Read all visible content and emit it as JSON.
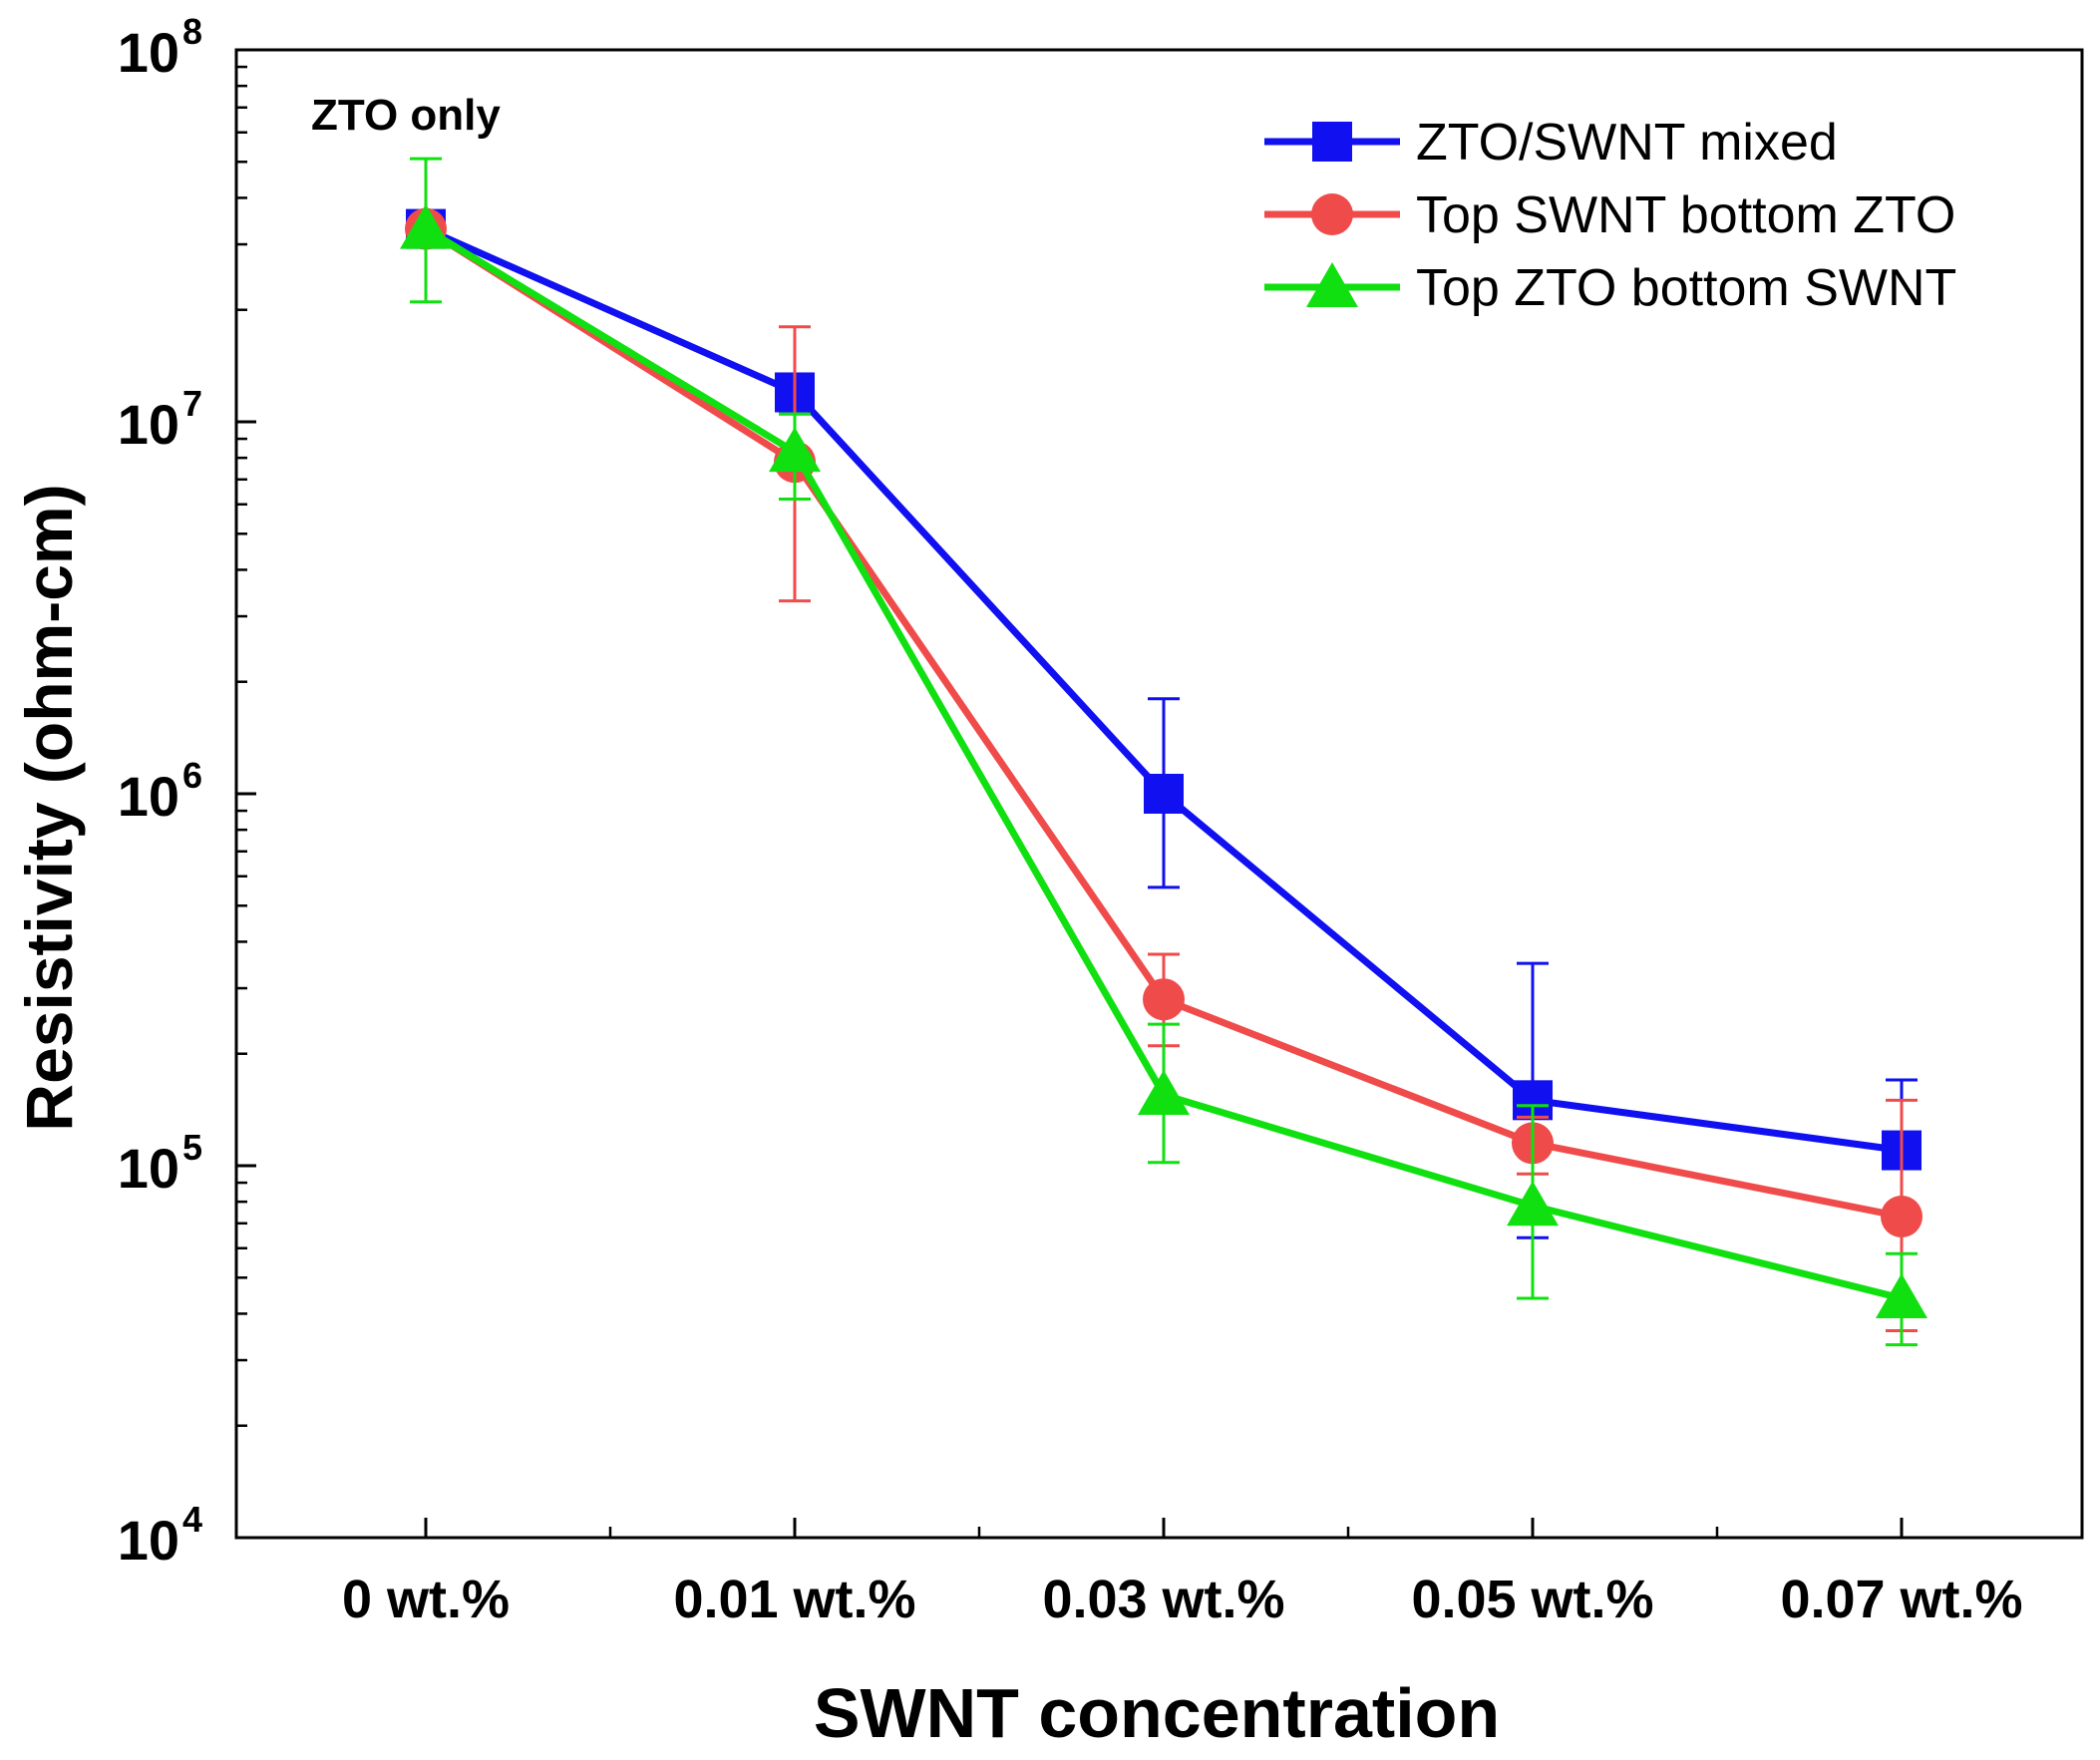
{
  "chart_data": {
    "type": "line",
    "title": "",
    "xlabel": "SWNT concentration",
    "ylabel": "Resistivity (ohm-cm)",
    "yscale": "log",
    "ylim": [
      10000,
      100000000
    ],
    "grid": false,
    "legend_position": "top-right",
    "categories": [
      "0 wt.%",
      "0.01 wt.%",
      "0.03 wt.%",
      "0.05 wt.%",
      "0.07 wt.%"
    ],
    "y_ticks": [
      {
        "value": 10000,
        "base": "10",
        "exp": "4"
      },
      {
        "value": 100000,
        "base": "10",
        "exp": "5"
      },
      {
        "value": 1000000,
        "base": "10",
        "exp": "6"
      },
      {
        "value": 10000000,
        "base": "10",
        "exp": "7"
      },
      {
        "value": 100000000,
        "base": "10",
        "exp": "8"
      }
    ],
    "annotation": "ZTO only",
    "series": [
      {
        "name": "ZTO/SWNT mixed",
        "color": "#1010f0",
        "marker": "square",
        "values": [
          33000000,
          12000000,
          1000000,
          150000,
          110000
        ],
        "err_low": [
          31000000,
          10500000,
          560000,
          64000,
          74000
        ],
        "err_high": [
          35000000,
          13000000,
          1800000,
          350000,
          170000
        ]
      },
      {
        "name": "Top SWNT bottom ZTO",
        "color": "#f04b4b",
        "marker": "circle",
        "values": [
          33000000,
          7800000,
          280000,
          115000,
          73000
        ],
        "err_low": [
          31000000,
          3300000,
          210000,
          95000,
          36000
        ],
        "err_high": [
          35000000,
          18000000,
          370000,
          135000,
          150000
        ]
      },
      {
        "name": "Top ZTO bottom SWNT",
        "color": "#10e010",
        "marker": "triangle",
        "values": [
          33000000,
          8300000,
          155000,
          78000,
          44000
        ],
        "err_low": [
          21000000,
          6200000,
          102000,
          44000,
          33000
        ],
        "err_high": [
          51000000,
          10500000,
          240000,
          145000,
          58000
        ]
      }
    ]
  }
}
